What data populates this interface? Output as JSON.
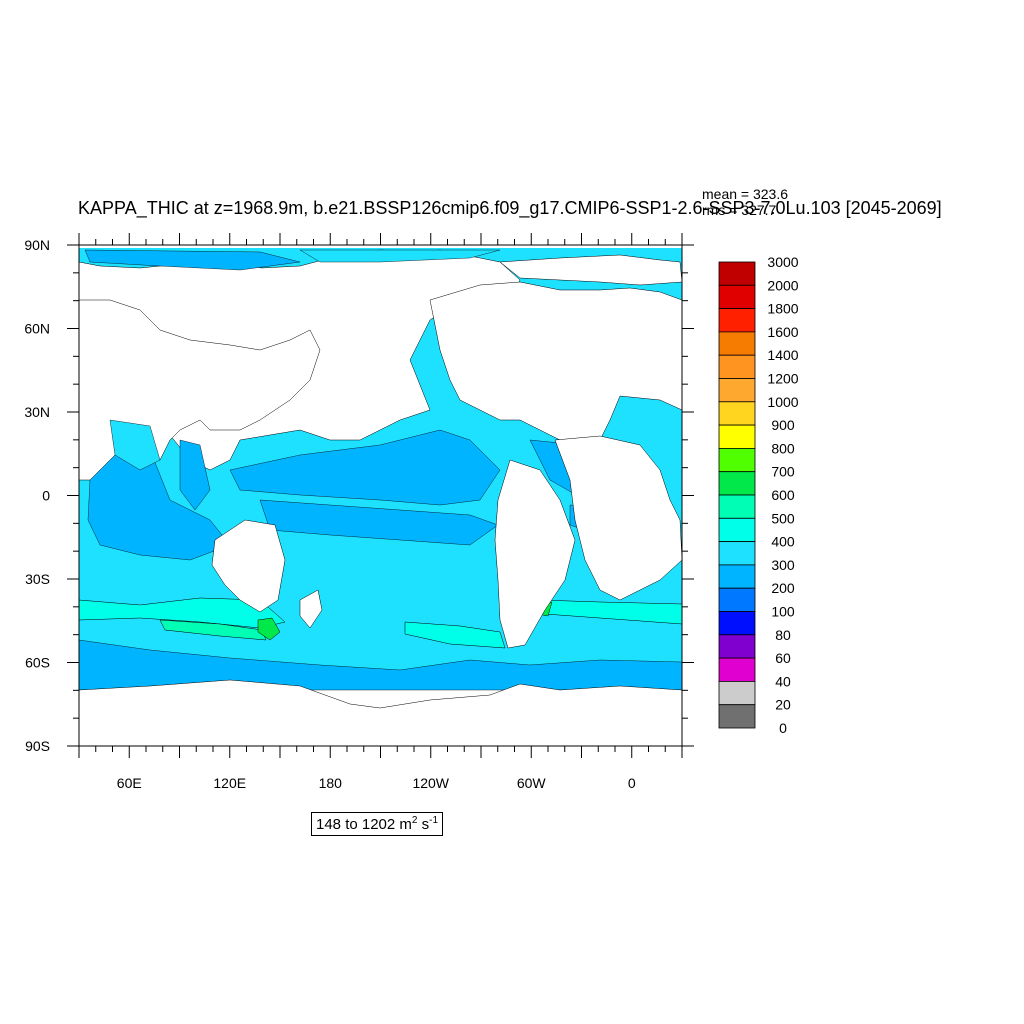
{
  "title": "KAPPA_THIC at z=1968.9m, b.e21.BSSP126cmip6.f09_g17.CMIP6-SSP1-2.6-SSP3-7.0Lu.103 [2045-2069]",
  "stats": {
    "mean": "mean = 323.6",
    "rms": "rms = 327.7"
  },
  "range": {
    "text": "148 to 1202 m",
    "exp1": "2",
    "mid": " s",
    "exp2": "-1"
  },
  "lat_labels": [
    "90N",
    "60N",
    "30N",
    "0",
    "30S",
    "60S",
    "90S"
  ],
  "lon_labels": [
    "60E",
    "120E",
    "180",
    "120W",
    "60W",
    "0"
  ],
  "colorbar": {
    "labels": [
      "3000",
      "2000",
      "1800",
      "1600",
      "1400",
      "1200",
      "1000",
      "900",
      "800",
      "700",
      "600",
      "500",
      "400",
      "300",
      "200",
      "100",
      "80",
      "60",
      "40",
      "20",
      "0"
    ],
    "colors": [
      "#c00000",
      "#e00000",
      "#ff2000",
      "#f57c00",
      "#ff9520",
      "#ffa830",
      "#ffd520",
      "#ffff00",
      "#50ff00",
      "#00e84a",
      "#00ffb4",
      "#00ffe8",
      "#1ee0ff",
      "#00b4ff",
      "#0078ff",
      "#0010ff",
      "#8000d0",
      "#e000d0",
      "#cccccc",
      "#707070"
    ]
  },
  "map_colors": {
    "land": "#ffffff",
    "ocean_400": "#1ee0ff",
    "ocean_300": "#00b4ff",
    "ocean_500": "#00ffe8",
    "ocean_600": "#00ffb4",
    "ocean_700": "#00e84a"
  }
}
